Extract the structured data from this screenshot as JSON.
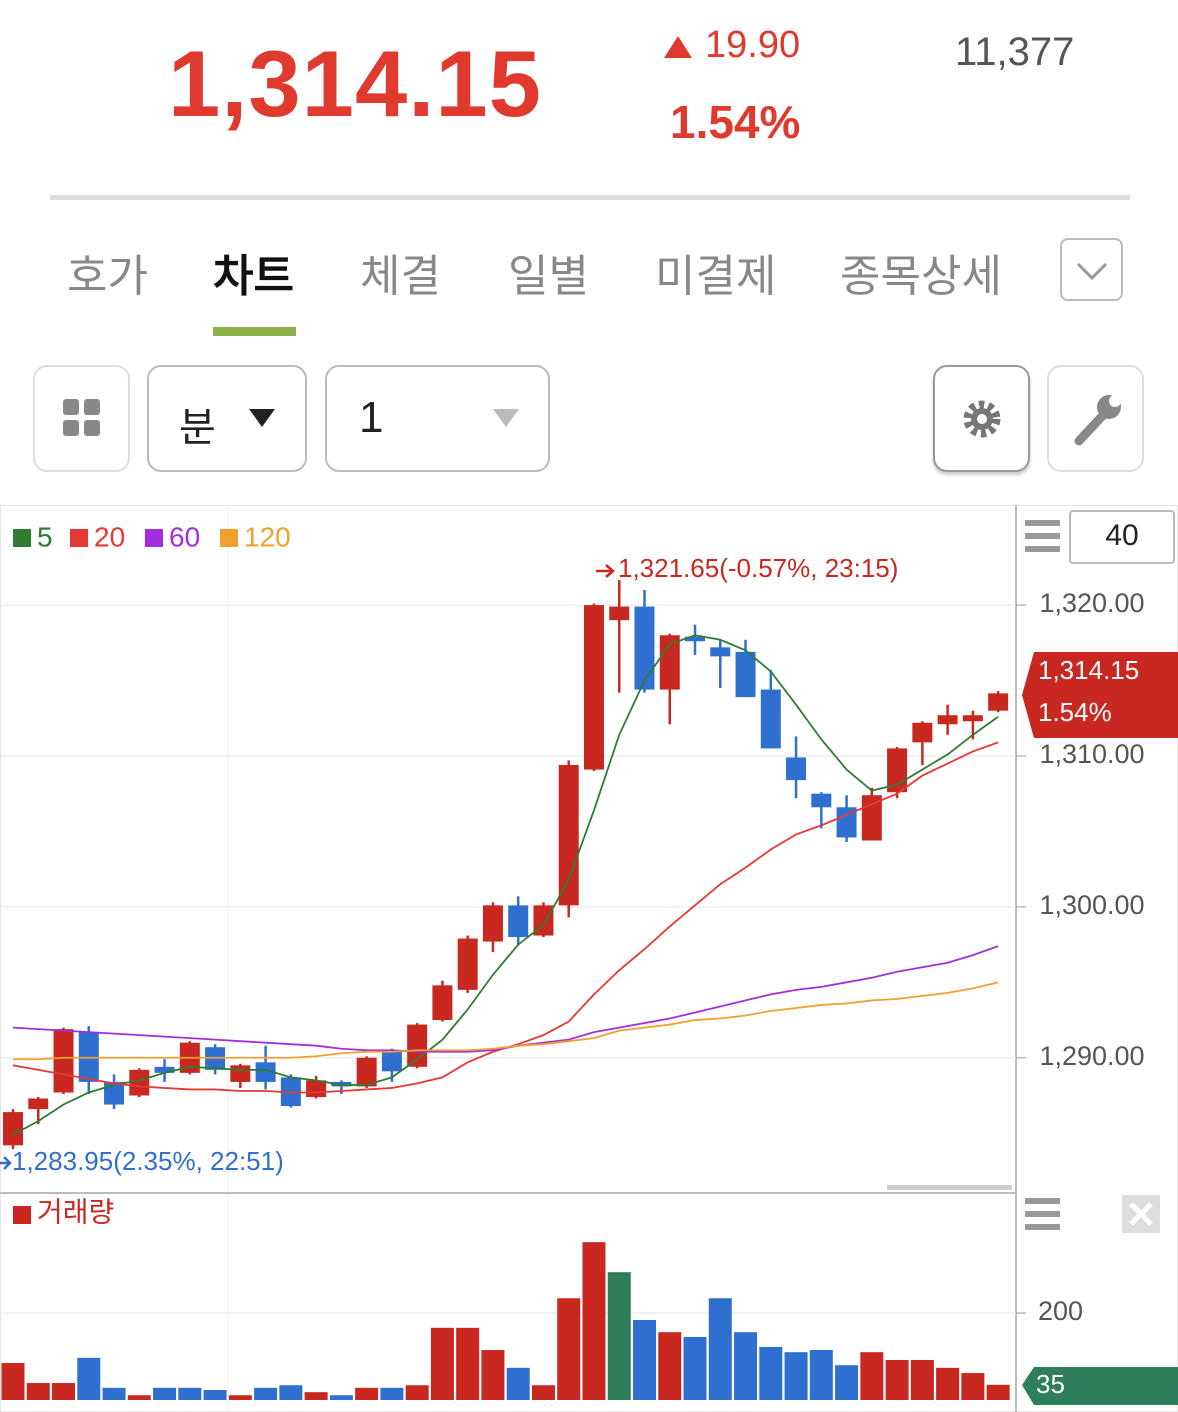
{
  "header": {
    "price": "1,314.15",
    "change": "19.90",
    "change_rate": "1.54%",
    "volume": "11,377"
  },
  "tabs": [
    "호가",
    "차트",
    "체결",
    "일별",
    "미결제",
    "종목상세"
  ],
  "controls": {
    "period_unit": "분",
    "period_value": "1"
  },
  "chart_data": [
    {
      "type": "candlestick",
      "visible_bars": 40,
      "high_label": "1,321.65(-0.57%, 23:15)",
      "low_label": "1,283.95(2.35%, 22:51)",
      "last_price": "1,314.15",
      "last_change": "1.54%",
      "up_color": "#c8281f",
      "down_color": "#2f6fcf",
      "open": [
        1284.2,
        1286.6,
        1287.7,
        1291.7,
        1288.4,
        1287.5,
        1289.4,
        1289.0,
        1290.7,
        1288.4,
        1289.7,
        1288.7,
        1287.4,
        1288.4,
        1288.1,
        1290.5,
        1289.4,
        1292.5,
        1294.5,
        1297.7,
        1300.1,
        1298.1,
        1300.1,
        1309.1,
        1319.0,
        1319.9,
        1314.4,
        1317.9,
        1317.2,
        1316.9,
        1314.4,
        1309.9,
        1307.5,
        1306.6,
        1304.4,
        1307.6,
        1310.9,
        1312.1,
        1312.3,
        1313.0
      ],
      "high": [
        1286.6,
        1287.4,
        1292.0,
        1292.1,
        1288.9,
        1289.3,
        1289.9,
        1291.1,
        1290.9,
        1289.6,
        1290.8,
        1288.9,
        1288.8,
        1288.5,
        1290.1,
        1290.6,
        1292.3,
        1295.1,
        1298.1,
        1300.3,
        1300.7,
        1300.3,
        1309.7,
        1320.1,
        1321.65,
        1321.0,
        1318.1,
        1318.7,
        1317.7,
        1317.7,
        1315.7,
        1311.3,
        1307.6,
        1307.4,
        1307.9,
        1310.6,
        1312.3,
        1313.4,
        1313.0,
        1314.3
      ],
      "low": [
        1283.95,
        1285.6,
        1287.6,
        1287.6,
        1286.6,
        1287.4,
        1288.4,
        1288.9,
        1288.9,
        1288.0,
        1287.9,
        1286.7,
        1287.3,
        1287.6,
        1288.0,
        1288.4,
        1289.3,
        1292.4,
        1294.3,
        1297.0,
        1297.5,
        1298.0,
        1299.3,
        1309.0,
        1314.2,
        1314.2,
        1312.1,
        1316.7,
        1314.5,
        1313.9,
        1310.5,
        1307.2,
        1305.2,
        1304.3,
        1304.4,
        1307.2,
        1309.4,
        1311.4,
        1311.1,
        1312.9
      ],
      "close": [
        1286.4,
        1287.3,
        1291.9,
        1288.4,
        1286.9,
        1289.2,
        1289.0,
        1291.0,
        1289.2,
        1289.5,
        1288.4,
        1286.8,
        1288.5,
        1288.1,
        1290.0,
        1289.1,
        1292.2,
        1294.8,
        1297.9,
        1300.1,
        1298.0,
        1300.1,
        1309.4,
        1320.0,
        1319.9,
        1314.4,
        1318.0,
        1317.6,
        1316.6,
        1313.9,
        1310.5,
        1308.4,
        1306.6,
        1304.6,
        1307.4,
        1310.5,
        1312.2,
        1312.7,
        1312.7,
        1314.15
      ],
      "lines": [
        {
          "name": "5",
          "color": "#2e7d32",
          "values": [
            1284.9,
            1285.8,
            1286.9,
            1287.7,
            1288.2,
            1288.5,
            1289.0,
            1289.4,
            1289.3,
            1289.2,
            1289.2,
            1288.7,
            1288.5,
            1288.2,
            1288.2,
            1288.7,
            1289.9,
            1291.2,
            1293.2,
            1295.5,
            1297.5,
            1298.8,
            1301.8,
            1306.4,
            1311.4,
            1315.0,
            1317.4,
            1318.0,
            1317.7,
            1317.0,
            1315.6,
            1313.4,
            1311.1,
            1309.1,
            1307.7,
            1308.1,
            1309.1,
            1310.1,
            1311.4,
            1312.6
          ]
        },
        {
          "name": "20",
          "color": "#e53935",
          "values": [
            1289.5,
            1289.2,
            1288.9,
            1288.6,
            1288.3,
            1288.1,
            1288.0,
            1287.9,
            1287.9,
            1287.8,
            1287.8,
            1287.7,
            1287.7,
            1287.8,
            1287.9,
            1288.0,
            1288.3,
            1288.7,
            1289.7,
            1290.4,
            1290.9,
            1291.5,
            1292.4,
            1294.2,
            1295.8,
            1297.2,
            1298.7,
            1300.1,
            1301.5,
            1302.6,
            1303.8,
            1304.8,
            1305.4,
            1306.1,
            1306.8,
            1307.5,
            1308.7,
            1309.5,
            1310.3,
            1310.9
          ]
        },
        {
          "name": "60",
          "color": "#a32ee0",
          "values": [
            1292.0,
            1291.9,
            1291.8,
            1291.7,
            1291.6,
            1291.5,
            1291.4,
            1291.3,
            1291.2,
            1291.1,
            1291.0,
            1290.9,
            1290.8,
            1290.6,
            1290.5,
            1290.5,
            1290.4,
            1290.4,
            1290.4,
            1290.5,
            1290.8,
            1291.0,
            1291.2,
            1291.7,
            1292.0,
            1292.3,
            1292.6,
            1293.0,
            1293.4,
            1293.8,
            1294.2,
            1294.5,
            1294.7,
            1295.0,
            1295.3,
            1295.7,
            1296.0,
            1296.3,
            1296.8,
            1297.4
          ]
        },
        {
          "name": "120",
          "color": "#f0a030",
          "values": [
            1289.9,
            1289.9,
            1290.0,
            1290.0,
            1290.0,
            1290.0,
            1290.0,
            1290.0,
            1290.0,
            1290.0,
            1290.0,
            1290.0,
            1290.1,
            1290.3,
            1290.4,
            1290.4,
            1290.5,
            1290.5,
            1290.5,
            1290.6,
            1290.8,
            1290.9,
            1291.1,
            1291.3,
            1291.8,
            1292.0,
            1292.2,
            1292.5,
            1292.6,
            1292.8,
            1293.1,
            1293.3,
            1293.5,
            1293.6,
            1293.8,
            1293.9,
            1294.1,
            1294.3,
            1294.6,
            1295.0
          ]
        }
      ],
      "ylim": [
        1281.9,
        1326.3
      ],
      "yticks": [
        {
          "value": 1290,
          "label": "1,290.00"
        },
        {
          "value": 1300,
          "label": "1,300.00"
        },
        {
          "value": 1310,
          "label": "1,310.00"
        },
        {
          "value": 1320,
          "label": "1,320.00"
        }
      ],
      "grid": true
    },
    {
      "type": "bar",
      "title": "거래량",
      "values": [
        85,
        39,
        39,
        97,
        28,
        11,
        28,
        28,
        23,
        11,
        28,
        34,
        18,
        11,
        28,
        28,
        34,
        166,
        166,
        115,
        74,
        34,
        234,
        363,
        294,
        184,
        156,
        145,
        234,
        156,
        122,
        110,
        115,
        80,
        110,
        92,
        92,
        74,
        62,
        35
      ],
      "colors": [
        "#c8281f",
        "#c8281f",
        "#c8281f",
        "#2f6fcf",
        "#2f6fcf",
        "#c8281f",
        "#2f6fcf",
        "#2f6fcf",
        "#2f6fcf",
        "#c8281f",
        "#2f6fcf",
        "#2f6fcf",
        "#c8281f",
        "#2f6fcf",
        "#c8281f",
        "#2f6fcf",
        "#c8281f",
        "#c8281f",
        "#c8281f",
        "#c8281f",
        "#2f6fcf",
        "#c8281f",
        "#c8281f",
        "#c8281f",
        "#2e7d5b",
        "#2f6fcf",
        "#c8281f",
        "#2f6fcf",
        "#2f6fcf",
        "#2f6fcf",
        "#2f6fcf",
        "#2f6fcf",
        "#2f6fcf",
        "#2f6fcf",
        "#c8281f",
        "#c8281f",
        "#c8281f",
        "#c8281f",
        "#c8281f",
        "#c8281f"
      ],
      "last_value": 35,
      "ylim": [
        0,
        460
      ],
      "yticks": [
        200
      ],
      "grid": true
    }
  ]
}
